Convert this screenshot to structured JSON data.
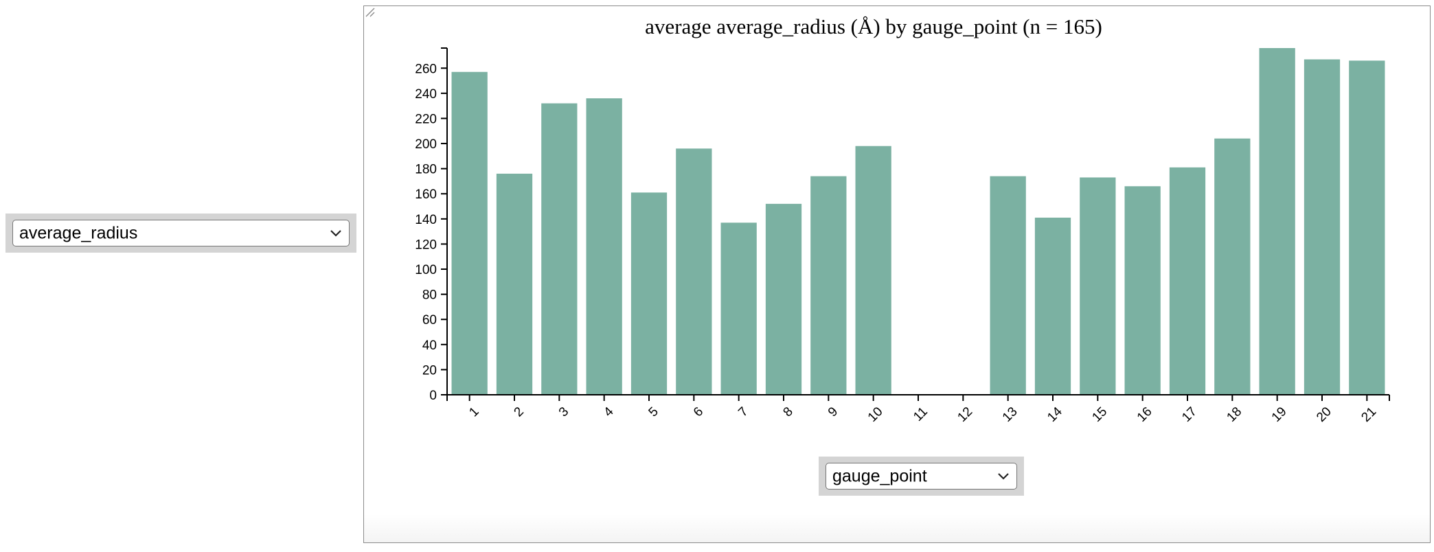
{
  "y_selector": {
    "value": "average_radius"
  },
  "x_selector": {
    "value": "gauge_point"
  },
  "colors": {
    "bar": "#7bb1a2",
    "axis": "#000000",
    "frame": "#8a8a8a",
    "select_bg": "#d4d4d4"
  },
  "icons": {
    "dropdown": "chevron-down-icon",
    "resize": "resize-grip-icon"
  },
  "chart_data": {
    "type": "bar",
    "title": "average average_radius (Å) by gauge_point (n = 165)",
    "xlabel": "",
    "ylabel": "",
    "categories": [
      "1",
      "2",
      "3",
      "4",
      "5",
      "6",
      "7",
      "8",
      "9",
      "10",
      "11",
      "12",
      "13",
      "14",
      "15",
      "16",
      "17",
      "18",
      "19",
      "20",
      "21"
    ],
    "values": [
      257,
      176,
      232,
      236,
      161,
      196,
      137,
      152,
      174,
      198,
      null,
      null,
      174,
      141,
      173,
      166,
      181,
      204,
      276,
      267,
      266
    ],
    "ylim": [
      0,
      276
    ],
    "yticks": [
      0,
      20,
      40,
      60,
      80,
      100,
      120,
      140,
      160,
      180,
      200,
      220,
      240,
      260
    ],
    "grid": false,
    "legend": "none"
  }
}
